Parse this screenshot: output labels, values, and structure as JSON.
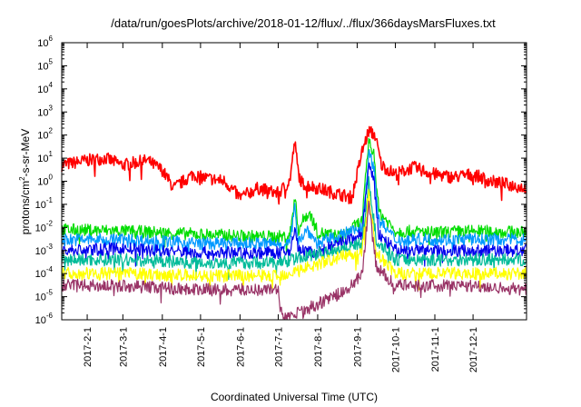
{
  "chart_data": {
    "type": "line",
    "title": "/data/run/goesPlots/archive/2018-01-12/flux/../flux/366daysMarsFluxes.txt",
    "xlabel": "Coordinated Universal Time (UTC)",
    "ylabel_parts": [
      "protons/cm",
      "2",
      "-s-sr-MeV"
    ],
    "yscale": "log",
    "ylim": [
      1e-06,
      1000000.0
    ],
    "y_ticks": [
      {
        "base": "10",
        "exp": "-6"
      },
      {
        "base": "10",
        "exp": "-5"
      },
      {
        "base": "10",
        "exp": "-4"
      },
      {
        "base": "10",
        "exp": "-3"
      },
      {
        "base": "10",
        "exp": "-2"
      },
      {
        "base": "10",
        "exp": "-1"
      },
      {
        "base": "10",
        "exp": "0"
      },
      {
        "base": "10",
        "exp": "1"
      },
      {
        "base": "10",
        "exp": "2"
      },
      {
        "base": "10",
        "exp": "3"
      },
      {
        "base": "10",
        "exp": "4"
      },
      {
        "base": "10",
        "exp": "5"
      },
      {
        "base": "10",
        "exp": "6"
      }
    ],
    "xlim": [
      "2017-01-12",
      "2018-01-12"
    ],
    "x_tick_labels": [
      "2017-2-1",
      "2017-3-1",
      "2017-4-1",
      "2017-5-1",
      "2017-6-1",
      "2017-7-1",
      "2017-8-1",
      "2017-9-1",
      "2017-10-1",
      "2017-11-1",
      "2017-12-1"
    ],
    "x_tick_dates": [
      "2017-02-01",
      "2017-03-01",
      "2017-04-01",
      "2017-05-01",
      "2017-06-01",
      "2017-07-01",
      "2017-08-01",
      "2017-09-01",
      "2017-10-01",
      "2017-11-01",
      "2017-12-01"
    ],
    "grid": false,
    "legend": "none",
    "series": [
      {
        "color": "#ff0000",
        "x": [
          "2017-01-12",
          "2017-02-01",
          "2017-02-15",
          "2017-03-01",
          "2017-03-20",
          "2017-04-01",
          "2017-04-10",
          "2017-04-25",
          "2017-05-01",
          "2017-05-20",
          "2017-06-01",
          "2017-06-15",
          "2017-07-01",
          "2017-07-10",
          "2017-07-14",
          "2017-07-17",
          "2017-07-20",
          "2017-08-01",
          "2017-08-15",
          "2017-08-28",
          "2017-09-05",
          "2017-09-10",
          "2017-09-15",
          "2017-09-20",
          "2017-10-01",
          "2017-10-15",
          "2017-11-01",
          "2017-11-15",
          "2017-12-01",
          "2017-12-15",
          "2018-01-12"
        ],
        "values": [
          5,
          8,
          10,
          5,
          8,
          3,
          0.5,
          2,
          1.5,
          1,
          0.2,
          0.5,
          0.3,
          1,
          50,
          2,
          0.8,
          0.5,
          0.3,
          0.2,
          20,
          150,
          100,
          5,
          2,
          4,
          2,
          1.5,
          2,
          1,
          0.5
        ]
      },
      {
        "color": "#00dd00",
        "x": [
          "2017-01-12",
          "2017-03-01",
          "2017-05-01",
          "2017-06-15",
          "2017-07-10",
          "2017-07-14",
          "2017-07-17",
          "2017-07-22",
          "2017-07-26",
          "2017-08-01",
          "2017-08-20",
          "2017-09-05",
          "2017-09-10",
          "2017-09-14",
          "2017-09-18",
          "2017-10-01",
          "2017-11-01",
          "2017-12-01",
          "2018-01-12"
        ],
        "values": [
          0.008,
          0.007,
          0.005,
          0.004,
          0.004,
          0.2,
          0.008,
          0.03,
          0.04,
          0.006,
          0.004,
          0.02,
          60,
          20,
          0.05,
          0.007,
          0.006,
          0.007,
          0.006
        ]
      },
      {
        "color": "#0099ff",
        "x": [
          "2017-01-12",
          "2017-03-01",
          "2017-05-01",
          "2017-07-10",
          "2017-07-14",
          "2017-07-17",
          "2017-07-24",
          "2017-08-01",
          "2017-09-05",
          "2017-09-10",
          "2017-09-14",
          "2017-09-18",
          "2017-10-01",
          "2017-12-01",
          "2018-01-12"
        ],
        "values": [
          0.003,
          0.003,
          0.002,
          0.002,
          0.06,
          0.003,
          0.008,
          0.002,
          0.01,
          15,
          5,
          0.02,
          0.003,
          0.003,
          0.003
        ]
      },
      {
        "color": "#0000ee",
        "x": [
          "2017-01-12",
          "2017-03-01",
          "2017-05-01",
          "2017-07-10",
          "2017-07-14",
          "2017-07-17",
          "2017-08-01",
          "2017-09-05",
          "2017-09-10",
          "2017-09-14",
          "2017-09-18",
          "2017-10-01",
          "2017-12-01",
          "2018-01-12"
        ],
        "values": [
          0.001,
          0.0012,
          0.0008,
          0.0008,
          0.01,
          0.001,
          0.0008,
          0.005,
          5,
          1,
          0.005,
          0.001,
          0.001,
          0.001
        ]
      },
      {
        "color": "#00bb99",
        "x": [
          "2017-01-12",
          "2017-03-01",
          "2017-05-01",
          "2017-07-01",
          "2017-09-05",
          "2017-09-10",
          "2017-09-16",
          "2017-10-01",
          "2017-12-01",
          "2018-01-12"
        ],
        "values": [
          0.0004,
          0.0004,
          0.0003,
          0.0003,
          0.002,
          1,
          0.003,
          0.0004,
          0.0004,
          0.0004
        ]
      },
      {
        "color": "#ffff00",
        "x": [
          "2017-01-12",
          "2017-03-01",
          "2017-05-01",
          "2017-07-01",
          "2017-09-05",
          "2017-09-10",
          "2017-09-16",
          "2017-10-01",
          "2017-12-01",
          "2018-01-12"
        ],
        "values": [
          0.0001,
          0.0001,
          8e-05,
          8e-05,
          0.001,
          0.3,
          0.0008,
          0.0001,
          0.0001,
          0.0001
        ]
      },
      {
        "color": "#993366",
        "x": [
          "2017-01-12",
          "2017-03-01",
          "2017-05-01",
          "2017-07-01",
          "2017-07-05",
          "2017-08-25",
          "2017-09-05",
          "2017-09-10",
          "2017-09-16",
          "2017-10-01",
          "2017-12-01",
          "2018-01-12"
        ],
        "values": [
          3e-05,
          3e-05,
          2e-05,
          2e-05,
          1e-06,
          2e-05,
          0.0001,
          0.1,
          0.0002,
          3e-05,
          3e-05,
          2e-05
        ]
      }
    ]
  }
}
